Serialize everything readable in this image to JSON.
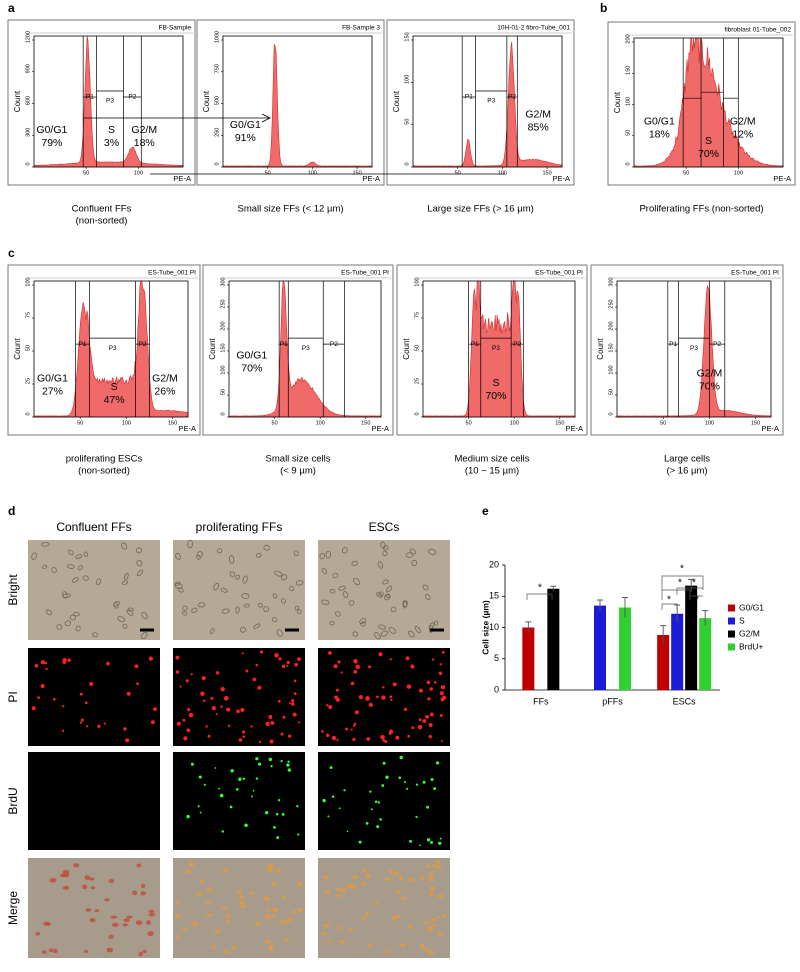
{
  "panel_labels": [
    "a",
    "b",
    "c",
    "d",
    "e"
  ],
  "flow_panels": [
    {
      "header": "FB-Sample",
      "ylabel": "Count",
      "xlabel": "PE-A",
      "yticks": [
        "1200",
        "900",
        "600",
        "300",
        "0"
      ],
      "xticks": [
        "50",
        "100"
      ],
      "gates": [
        "P1",
        "P3",
        "P2"
      ],
      "labels": [
        [
          "G0/G1",
          "79%"
        ],
        [
          "S",
          "3%"
        ],
        [
          "G2/M",
          "18%"
        ]
      ],
      "caption": [
        "Confluent FFs",
        "(non-sorted)"
      ]
    },
    {
      "header": "FB-Sample 3",
      "ylabel": "Count",
      "xlabel": "PE-A",
      "yticks": [
        "1000",
        "750",
        "500",
        "250",
        "0"
      ],
      "xticks": [
        "50",
        "100",
        "150"
      ],
      "gates": [],
      "labels": [
        [
          "G0/G1",
          "91%"
        ]
      ],
      "caption": [
        "Small size FFs (< 12 µm)"
      ]
    },
    {
      "header": "10H-01-2 fibro-Tube_001",
      "ylabel": "Count",
      "xlabel": "PE-A",
      "yticks": [
        "150",
        "100",
        "50",
        "0"
      ],
      "xticks": [
        "50",
        "100",
        "150"
      ],
      "gates": [
        "P1",
        "P3",
        "P2"
      ],
      "labels": [
        [
          "G2/M",
          "85%"
        ]
      ],
      "caption": [
        "Large size FFs (> 16 µm)"
      ]
    },
    {
      "header": "fibroblast 01-Tube_002",
      "ylabel": "Count",
      "xlabel": "PE-A",
      "yticks": [
        "200",
        "150",
        "100",
        "50",
        "0"
      ],
      "xticks": [
        "50",
        "100"
      ],
      "gates": [],
      "labels": [
        [
          "G0/G1",
          "18%"
        ],
        [
          "S",
          "70%"
        ],
        [
          "G2/M",
          "12%"
        ]
      ],
      "caption": [
        "Proliferating FFs (non-sorted)"
      ]
    },
    {
      "header": "ES-Tube_001 PI",
      "ylabel": "Count",
      "xlabel": "PE-A",
      "yticks": [
        "100",
        "75",
        "50",
        "25",
        "0"
      ],
      "xticks": [
        "50",
        "100",
        "150"
      ],
      "gates": [
        "P1",
        "P3",
        "P2"
      ],
      "labels": [
        [
          "G0/G1",
          "27%"
        ],
        [
          "S",
          "47%"
        ],
        [
          "G2/M",
          "26%"
        ]
      ],
      "caption": [
        "proliferating ESCs",
        "(non-sorted)"
      ]
    },
    {
      "header": "ES-Tube_001 PI",
      "ylabel": "Count",
      "xlabel": "PE-A",
      "yticks": [
        "300",
        "250",
        "200",
        "150",
        "100",
        "50",
        "0"
      ],
      "xticks": [
        "50",
        "100",
        "150"
      ],
      "gates": [
        "P1",
        "P3",
        "P2"
      ],
      "labels": [
        [
          "G0/G1",
          "70%"
        ]
      ],
      "caption": [
        "Small size cells",
        "(< 9 µm)"
      ]
    },
    {
      "header": "ES-Tube_001 PI",
      "ylabel": "Count",
      "xlabel": "PE-A",
      "yticks": [
        "100",
        "75",
        "50",
        "25",
        "0"
      ],
      "xticks": [
        "50",
        "100",
        "150"
      ],
      "gates": [
        "P1",
        "P3",
        "P2"
      ],
      "labels": [
        [
          "S",
          "70%"
        ]
      ],
      "caption": [
        "Medium size cells",
        "(10 ~ 15 µm)"
      ]
    },
    {
      "header": "ES-Tube_001 PI",
      "ylabel": "Count",
      "xlabel": "PE-A",
      "yticks": [
        "300",
        "250",
        "200",
        "150",
        "100",
        "50",
        "0"
      ],
      "xticks": [
        "50",
        "100",
        "150"
      ],
      "gates": [
        "P1",
        "P3",
        "P2"
      ],
      "labels": [
        [
          "G2/M",
          "70%"
        ]
      ],
      "caption": [
        "Large cells",
        "(> 16 µm)"
      ]
    }
  ],
  "microscopy": {
    "columns": [
      "Confluent FFs",
      "proliferating FFs",
      "ESCs"
    ],
    "rows": [
      "Bright",
      "PI",
      "BrdU",
      "Merge"
    ]
  },
  "chart_data": {
    "type": "bar",
    "ylabel": "Cell size (µm)",
    "categories": [
      "FFs",
      "pFFs",
      "ESCs"
    ],
    "series": [
      {
        "name": "G0/G1",
        "color": "#c00000",
        "values": [
          10,
          null,
          8.8
        ],
        "errors": [
          0.9,
          null,
          1.5
        ]
      },
      {
        "name": "S",
        "color": "#1c1cd8",
        "values": [
          null,
          13.5,
          12.2
        ],
        "errors": [
          null,
          0.9,
          1.4
        ]
      },
      {
        "name": "G2/M",
        "color": "#000000",
        "values": [
          16.2,
          null,
          16.7
        ],
        "errors": [
          0.4,
          null,
          1.0
        ]
      },
      {
        "name": "BrdU+",
        "color": "#2fd02f",
        "values": [
          null,
          13.2,
          11.5
        ],
        "errors": [
          null,
          1.6,
          1.2
        ]
      }
    ],
    "ylim": [
      0,
      20
    ],
    "yticks": [
      0,
      5,
      10,
      15,
      20
    ],
    "legend": "right",
    "annotations": [
      "*",
      "*",
      "*",
      "*",
      "*",
      "*"
    ]
  }
}
